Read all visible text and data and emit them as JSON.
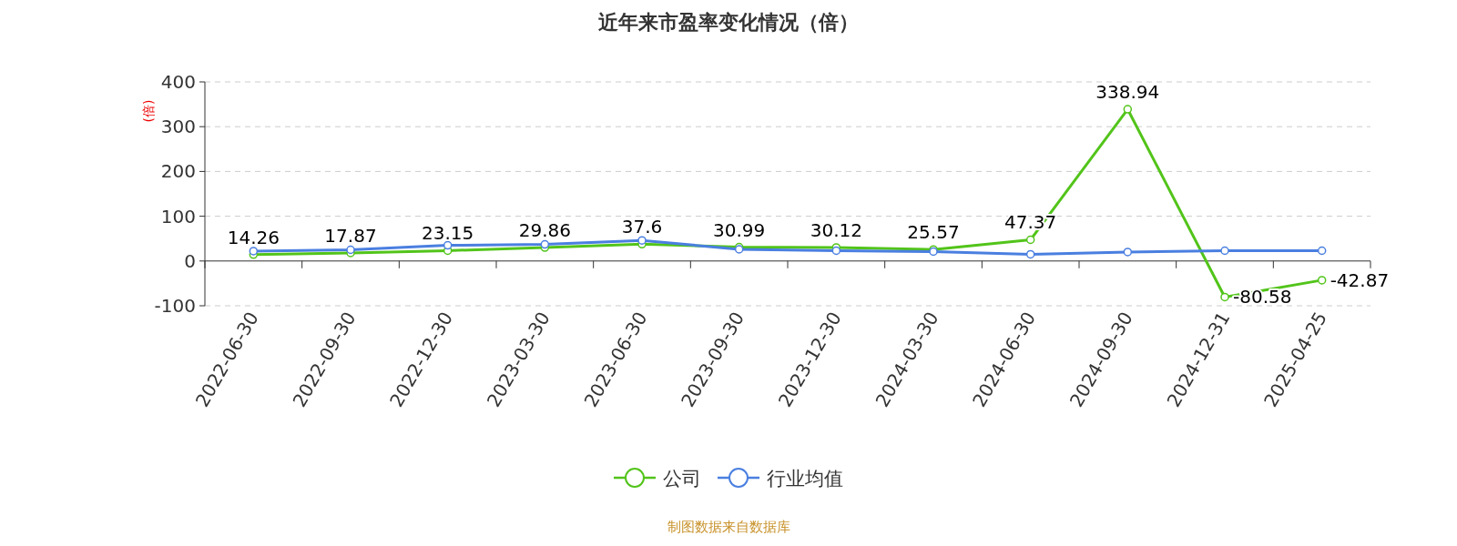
{
  "chart_data": {
    "type": "line",
    "title": "近年来市盈率变化情况（倍）",
    "ylabel": "(倍)",
    "categories": [
      "2022-06-30",
      "2022-09-30",
      "2022-12-30",
      "2023-03-30",
      "2023-06-30",
      "2023-09-30",
      "2023-12-30",
      "2024-03-30",
      "2024-06-30",
      "2024-09-30",
      "2024-12-31",
      "2025-04-25"
    ],
    "series": [
      {
        "name": "公司",
        "color": "#52c41a",
        "values": [
          14.26,
          17.87,
          23.15,
          29.86,
          37.6,
          30.99,
          30.12,
          25.57,
          47.37,
          338.94,
          -80.58,
          -42.87
        ],
        "data_labels": true
      },
      {
        "name": "行业均值",
        "color": "#4a7fe0",
        "values": [
          22,
          25,
          35,
          37,
          46,
          26,
          23,
          21,
          15,
          20,
          23,
          23
        ]
      }
    ],
    "ylim": [
      -100,
      400
    ],
    "yticks": [
      -100,
      0,
      100,
      200,
      300,
      400
    ],
    "grid": "y",
    "legend": "bottom",
    "marker": "circle",
    "annotations": [
      "制图数据来自数据库"
    ]
  }
}
